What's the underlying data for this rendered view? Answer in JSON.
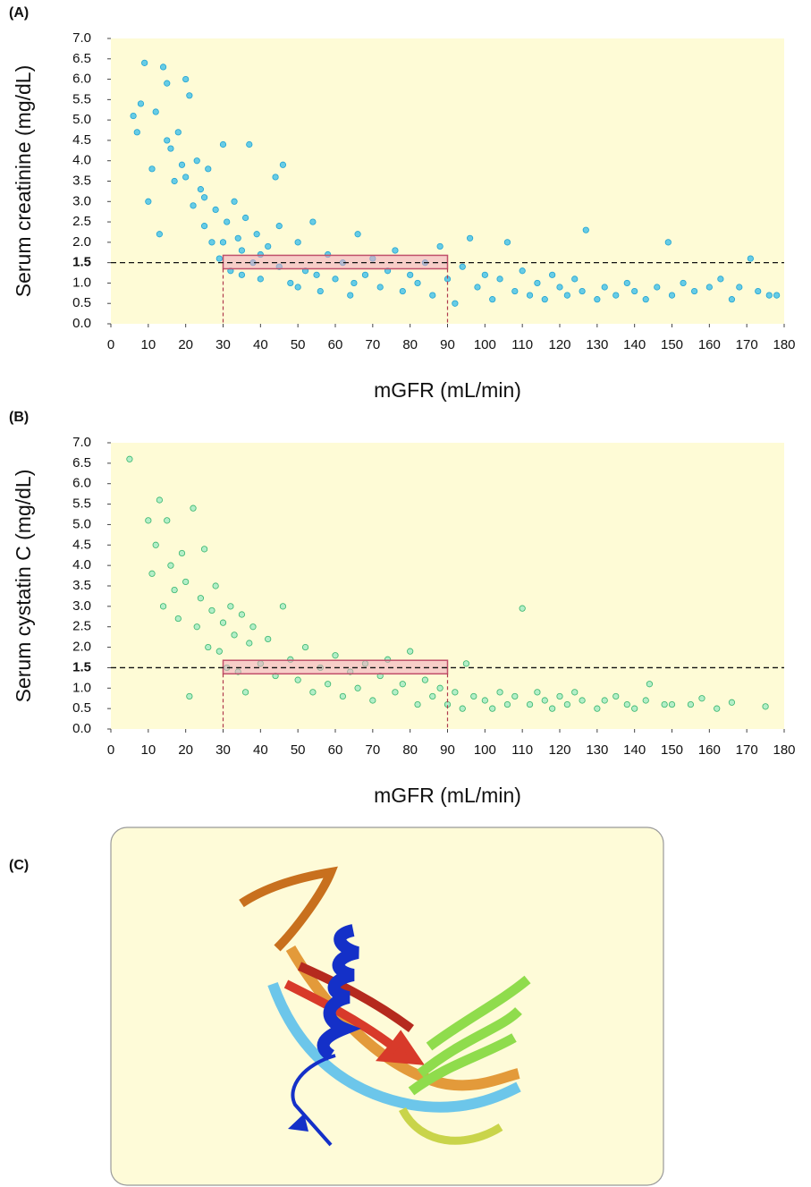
{
  "chart_data": [
    {
      "type": "scatter",
      "panel_label": "(A)",
      "xlabel": "mGFR (mL/min)",
      "ylabel": "Serum creatinine (mg/dL)",
      "color": "#4cc3e8",
      "edge_color": "#1fa3d4",
      "background": "#fefbd6",
      "xlim": [
        0,
        180
      ],
      "ylim": [
        0,
        7
      ],
      "xticks": [
        0,
        10,
        20,
        30,
        40,
        50,
        60,
        70,
        80,
        90,
        100,
        110,
        120,
        130,
        140,
        150,
        160,
        170,
        180
      ],
      "yticks": [
        {
          "value": 0,
          "label": "0.0"
        },
        0.5,
        {
          "value": 1,
          "label": "1.0"
        },
        1.5,
        {
          "value": 2,
          "label": "2.0"
        },
        2.5,
        {
          "value": 3,
          "label": "3.0"
        },
        3.5,
        {
          "value": 4,
          "label": "4.0"
        },
        4.5,
        {
          "value": 5,
          "label": "5.0"
        },
        5.5,
        {
          "value": 6,
          "label": "6.0"
        },
        6.5,
        {
          "value": 7,
          "label": "7.0"
        }
      ],
      "reference_y": 1.5,
      "highlight": {
        "x": [
          30,
          90
        ],
        "y": [
          1.35,
          1.68
        ]
      },
      "x": [
        6,
        7,
        8,
        9,
        10,
        11,
        12,
        13,
        14,
        15,
        16,
        17,
        18,
        19,
        20,
        21,
        22,
        23,
        24,
        25,
        26,
        27,
        28,
        29,
        30,
        31,
        32,
        33,
        34,
        35,
        36,
        37,
        38,
        39,
        40,
        42,
        44,
        45,
        46,
        48,
        50,
        52,
        54,
        56,
        58,
        60,
        62,
        64,
        66,
        68,
        70,
        72,
        74,
        76,
        78,
        80,
        82,
        84,
        86,
        88,
        90,
        92,
        94,
        96,
        98,
        100,
        102,
        104,
        106,
        108,
        110,
        112,
        114,
        116,
        118,
        120,
        122,
        124,
        126,
        127,
        130,
        132,
        135,
        138,
        140,
        143,
        146,
        149,
        150,
        153,
        156,
        160,
        163,
        166,
        168,
        171,
        173,
        176,
        178,
        15,
        20,
        25,
        30,
        35,
        40,
        45,
        50,
        55,
        65
      ],
      "y": [
        5.1,
        4.7,
        5.4,
        6.4,
        3.0,
        3.8,
        5.2,
        2.2,
        6.3,
        5.9,
        4.3,
        3.5,
        4.7,
        3.9,
        6.0,
        5.6,
        2.9,
        4.0,
        3.3,
        2.4,
        3.8,
        2.0,
        2.8,
        1.6,
        4.4,
        2.5,
        1.3,
        3.0,
        2.1,
        1.8,
        2.6,
        4.4,
        1.5,
        2.2,
        1.1,
        1.9,
        3.6,
        1.4,
        3.9,
        1.0,
        2.0,
        1.3,
        2.5,
        0.8,
        1.7,
        1.1,
        1.5,
        0.7,
        2.2,
        1.2,
        1.6,
        0.9,
        1.3,
        1.8,
        0.8,
        1.2,
        1.0,
        1.5,
        0.7,
        1.9,
        1.1,
        0.5,
        1.4,
        2.1,
        0.9,
        1.2,
        0.6,
        1.1,
        2.0,
        0.8,
        1.3,
        0.7,
        1.0,
        0.6,
        1.2,
        0.9,
        0.7,
        1.1,
        0.8,
        2.3,
        0.6,
        0.9,
        0.7,
        1.0,
        0.8,
        0.6,
        0.9,
        2.0,
        0.7,
        1.0,
        0.8,
        0.9,
        1.1,
        0.6,
        0.9,
        1.6,
        0.8,
        0.7,
        0.7,
        4.5,
        3.6,
        3.1,
        2.0,
        1.2,
        1.7,
        2.4,
        0.9,
        1.2,
        1.0
      ]
    },
    {
      "type": "scatter",
      "panel_label": "(B)",
      "xlabel": "mGFR (mL/min)",
      "ylabel": "Serum cystatin C (mg/dL)",
      "color": "#a6ebc4",
      "edge_color": "#36b56e",
      "background": "#fefbd6",
      "xlim": [
        0,
        180
      ],
      "ylim": [
        0,
        7
      ],
      "xticks": [
        0,
        10,
        20,
        30,
        40,
        50,
        60,
        70,
        80,
        90,
        100,
        110,
        120,
        130,
        140,
        150,
        160,
        170,
        180
      ],
      "yticks": [
        {
          "value": 0,
          "label": "0.0"
        },
        0.5,
        {
          "value": 1,
          "label": "1.0"
        },
        1.5,
        {
          "value": 2,
          "label": "2.0"
        },
        2.5,
        {
          "value": 3,
          "label": "3.0"
        },
        3.5,
        {
          "value": 4,
          "label": "4.0"
        },
        4.5,
        {
          "value": 5,
          "label": "5.0"
        },
        5.5,
        {
          "value": 6,
          "label": "6.0"
        },
        6.5,
        {
          "value": 7,
          "label": "7.0"
        }
      ],
      "reference_y": 1.5,
      "highlight": {
        "x": [
          30,
          90
        ],
        "y": [
          1.35,
          1.68
        ]
      },
      "x": [
        5,
        10,
        11,
        12,
        13,
        14,
        15,
        16,
        17,
        18,
        19,
        20,
        21,
        22,
        23,
        24,
        25,
        26,
        27,
        28,
        29,
        30,
        31,
        32,
        33,
        34,
        35,
        36,
        37,
        38,
        40,
        42,
        44,
        46,
        48,
        50,
        52,
        54,
        56,
        58,
        60,
        62,
        64,
        66,
        68,
        70,
        72,
        74,
        76,
        78,
        80,
        82,
        84,
        86,
        88,
        90,
        92,
        94,
        95,
        97,
        100,
        102,
        104,
        106,
        108,
        110,
        112,
        114,
        116,
        118,
        120,
        122,
        124,
        126,
        130,
        132,
        135,
        138,
        140,
        143,
        144,
        148,
        150,
        155,
        158,
        162,
        166,
        175
      ],
      "y": [
        6.6,
        5.1,
        3.8,
        4.5,
        5.6,
        3.0,
        5.1,
        4.0,
        3.4,
        2.7,
        4.3,
        3.6,
        0.8,
        5.4,
        2.5,
        3.2,
        4.4,
        2.0,
        2.9,
        3.5,
        1.9,
        2.6,
        1.5,
        3.0,
        2.3,
        1.4,
        2.8,
        0.9,
        2.1,
        2.5,
        1.6,
        2.2,
        1.3,
        3.0,
        1.7,
        1.2,
        2.0,
        0.9,
        1.5,
        1.1,
        1.8,
        0.8,
        1.4,
        1.0,
        1.6,
        0.7,
        1.3,
        1.7,
        0.9,
        1.1,
        1.9,
        0.6,
        1.2,
        0.8,
        1.0,
        0.6,
        0.9,
        0.5,
        1.6,
        0.8,
        0.7,
        0.5,
        0.9,
        0.6,
        0.8,
        2.95,
        0.6,
        0.9,
        0.7,
        0.5,
        0.8,
        0.6,
        0.9,
        0.7,
        0.5,
        0.7,
        0.8,
        0.6,
        0.5,
        0.7,
        1.1,
        0.6,
        0.6,
        0.6,
        0.75,
        0.5,
        0.65,
        0.55
      ]
    }
  ],
  "panel_c": {
    "label": "(C)"
  }
}
